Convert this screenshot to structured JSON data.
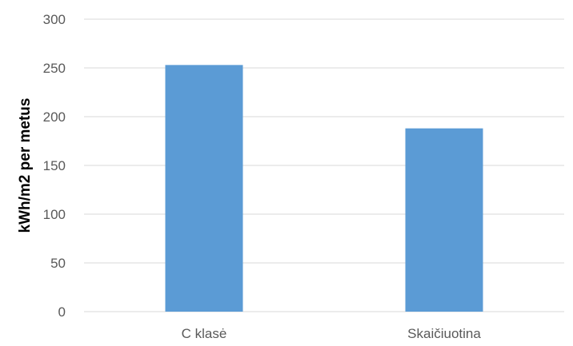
{
  "chart_data": {
    "type": "bar",
    "categories": [
      "C klasė",
      "Skaičiuotina"
    ],
    "values": [
      253,
      188
    ],
    "title": "",
    "xlabel": "",
    "ylabel": "kWh/m2 per metus",
    "ylim": [
      0,
      300
    ],
    "yticks": [
      0,
      50,
      100,
      150,
      200,
      250,
      300
    ],
    "grid": true,
    "legend": "none",
    "bar_color": "#5b9bd5"
  }
}
